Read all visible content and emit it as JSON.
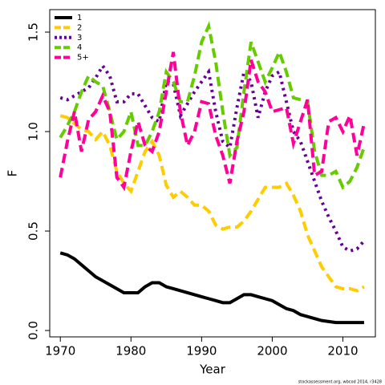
{
  "chart_data": {
    "type": "line",
    "xlabel": "Year",
    "ylabel": "F",
    "footer": "stockassessment.org, wbcod 2014, r3428",
    "x": [
      1970,
      1971,
      1972,
      1973,
      1974,
      1975,
      1976,
      1977,
      1978,
      1979,
      1980,
      1981,
      1982,
      1983,
      1984,
      1985,
      1986,
      1987,
      1988,
      1989,
      1990,
      1991,
      1992,
      1993,
      1994,
      1995,
      1996,
      1997,
      1998,
      1999,
      2000,
      2001,
      2002,
      2003,
      2004,
      2005,
      2006,
      2007,
      2008,
      2009,
      2010,
      2011,
      2012,
      2013
    ],
    "series": [
      {
        "name": "1",
        "color": "#000000",
        "linestyle": "solid",
        "values": [
          0.39,
          0.38,
          0.36,
          0.33,
          0.3,
          0.27,
          0.25,
          0.23,
          0.21,
          0.19,
          0.19,
          0.19,
          0.22,
          0.24,
          0.24,
          0.22,
          0.21,
          0.2,
          0.19,
          0.18,
          0.17,
          0.16,
          0.15,
          0.14,
          0.14,
          0.16,
          0.18,
          0.18,
          0.17,
          0.16,
          0.15,
          0.13,
          0.11,
          0.1,
          0.08,
          0.07,
          0.06,
          0.05,
          0.045,
          0.04,
          0.04,
          0.04,
          0.04,
          0.04
        ]
      },
      {
        "name": "2",
        "color": "#ffcc00",
        "linestyle": "dashed",
        "values": [
          1.08,
          1.07,
          1.04,
          1.01,
          1.0,
          0.96,
          1.0,
          0.93,
          0.8,
          0.74,
          0.7,
          0.8,
          0.9,
          0.95,
          0.88,
          0.73,
          0.67,
          0.7,
          0.67,
          0.63,
          0.63,
          0.6,
          0.53,
          0.51,
          0.52,
          0.52,
          0.55,
          0.6,
          0.66,
          0.72,
          0.72,
          0.72,
          0.74,
          0.68,
          0.6,
          0.48,
          0.4,
          0.32,
          0.27,
          0.22,
          0.21,
          0.21,
          0.2,
          0.22
        ]
      },
      {
        "name": "3",
        "color": "#660099",
        "linestyle": "dotted",
        "values": [
          1.17,
          1.16,
          1.18,
          1.2,
          1.22,
          1.27,
          1.33,
          1.28,
          1.15,
          1.15,
          1.19,
          1.19,
          1.13,
          1.07,
          1.05,
          1.25,
          1.24,
          1.08,
          1.14,
          1.2,
          1.25,
          1.3,
          1.1,
          0.95,
          0.92,
          1.12,
          1.3,
          1.25,
          1.07,
          1.2,
          1.28,
          1.3,
          1.15,
          1.0,
          0.95,
          0.85,
          0.75,
          0.65,
          0.57,
          0.5,
          0.42,
          0.4,
          0.41,
          0.45
        ]
      },
      {
        "name": "4",
        "color": "#66cc00",
        "linestyle": "dashed",
        "values": [
          0.97,
          1.03,
          1.1,
          1.2,
          1.28,
          1.25,
          1.23,
          1.1,
          0.96,
          1.0,
          1.1,
          0.93,
          0.93,
          1.0,
          1.1,
          1.3,
          1.25,
          1.15,
          1.15,
          1.28,
          1.45,
          1.53,
          1.35,
          1.1,
          0.88,
          0.92,
          1.2,
          1.45,
          1.35,
          1.25,
          1.32,
          1.4,
          1.3,
          1.17,
          1.16,
          1.15,
          0.9,
          0.78,
          0.78,
          0.8,
          0.72,
          0.75,
          0.82,
          0.92
        ]
      },
      {
        "name": "5+",
        "color": "#ff0099",
        "linestyle": "dashed",
        "values": [
          0.77,
          0.95,
          1.1,
          0.9,
          1.06,
          1.1,
          1.18,
          1.1,
          0.77,
          0.72,
          0.9,
          1.05,
          0.93,
          0.9,
          1.0,
          1.2,
          1.4,
          1.1,
          0.93,
          1.0,
          1.15,
          1.14,
          0.98,
          0.88,
          0.74,
          0.95,
          1.1,
          1.36,
          1.25,
          1.2,
          1.1,
          1.11,
          1.12,
          0.94,
          1.05,
          1.16,
          0.78,
          0.8,
          1.05,
          1.07,
          1.0,
          1.08,
          0.88,
          1.04
        ]
      }
    ],
    "xlim": [
      1968.5,
      2014.6
    ],
    "xticks": [
      1970,
      1980,
      1990,
      2000,
      2010
    ],
    "ylim": [
      -0.032,
      1.613
    ],
    "yticks": [
      {
        "value": 0,
        "label": "0.0"
      },
      0.5,
      {
        "value": 1,
        "label": "1.0"
      },
      1.5
    ],
    "legend": "top-left"
  }
}
